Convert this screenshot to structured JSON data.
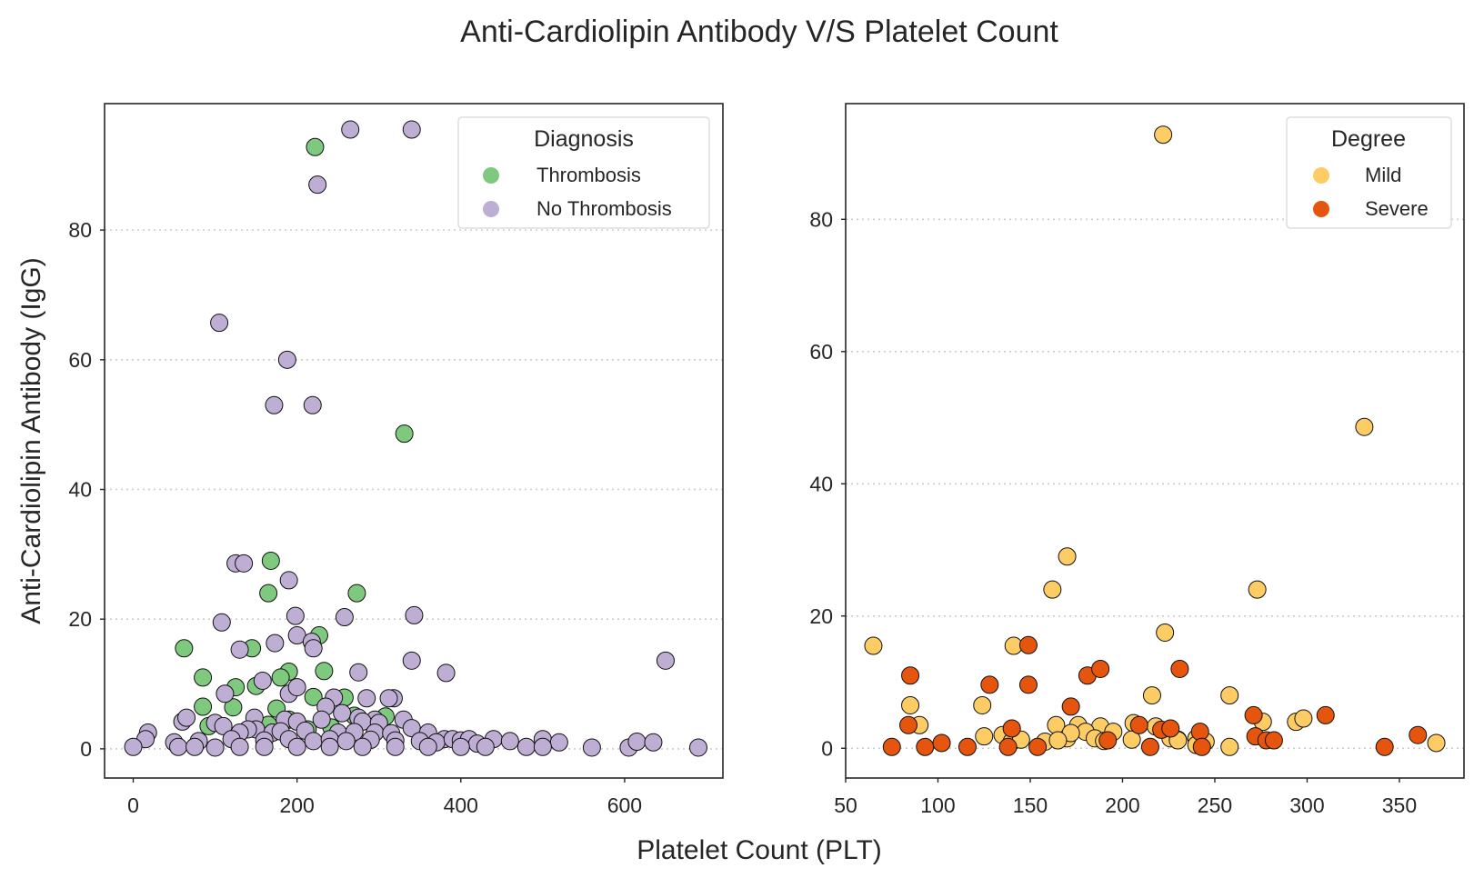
{
  "figure": {
    "title": "Anti-Cardiolipin Antibody V/S Platelet Count",
    "shared_xlabel": "Platelet Count (PLT)"
  },
  "chart_data": [
    {
      "type": "scatter",
      "xlabel": "Platelet Count (PLT)",
      "ylabel": "Anti-Cardiolipin Antibody (IgG)",
      "xlim": [
        -35,
        720
      ],
      "ylim": [
        -4.5,
        99.5
      ],
      "xticks": [
        0,
        200,
        400,
        600
      ],
      "yticks": [
        0,
        20,
        40,
        60,
        80
      ],
      "grid": "horizontal dotted",
      "legend": {
        "title": "Diagnosis",
        "placement": "top-right"
      },
      "series": [
        {
          "name": "Thrombosis",
          "color": "#7fc97f",
          "points": [
            [
              222,
              92.8
            ],
            [
              331,
              48.6
            ],
            [
              168,
              29
            ],
            [
              165,
              24
            ],
            [
              273,
              24
            ],
            [
              62,
              15.5
            ],
            [
              145,
              15.5
            ],
            [
              227,
              17.5
            ],
            [
              190,
              11.9
            ],
            [
              180,
              11
            ],
            [
              233,
              12
            ],
            [
              85,
              11
            ],
            [
              125,
              9.5
            ],
            [
              150,
              9.7
            ],
            [
              220,
              8
            ],
            [
              258,
              7.9
            ],
            [
              308,
              5
            ],
            [
              85,
              6.5
            ],
            [
              122,
              6.4
            ],
            [
              165,
              3.7
            ],
            [
              92,
              3.5
            ],
            [
              242,
              3.3
            ],
            [
              213,
              3
            ],
            [
              358,
              2.2
            ],
            [
              175,
              6.2
            ],
            [
              190,
              4.5
            ],
            [
              270,
              5.1
            ]
          ]
        },
        {
          "name": "No Thrombosis",
          "color": "#beaed4",
          "points": [
            [
              265,
              95.5
            ],
            [
              340,
              95.5
            ],
            [
              225,
              87
            ],
            [
              105,
              65.7
            ],
            [
              188,
              60
            ],
            [
              172,
              53
            ],
            [
              219,
              53
            ],
            [
              125,
              28.6
            ],
            [
              135,
              28.6
            ],
            [
              190,
              26
            ],
            [
              198,
              20.5
            ],
            [
              258,
              20.3
            ],
            [
              343,
              20.6
            ],
            [
              108,
              19.5
            ],
            [
              200,
              17.5
            ],
            [
              218,
              16.5
            ],
            [
              220,
              15.5
            ],
            [
              130,
              15.3
            ],
            [
              173,
              16.3
            ],
            [
              340,
              13.6
            ],
            [
              382,
              11.7
            ],
            [
              275,
              11.8
            ],
            [
              650,
              13.6
            ],
            [
              112,
              8.5
            ],
            [
              190,
              8.5
            ],
            [
              158,
              10.5
            ],
            [
              200,
              9.5
            ],
            [
              245,
              7.9
            ],
            [
              285,
              7.8
            ],
            [
              318,
              7.8
            ],
            [
              312,
              7.8
            ],
            [
              235,
              6.5
            ],
            [
              255,
              5.5
            ],
            [
              275,
              4.8
            ],
            [
              295,
              4.5
            ],
            [
              330,
              4.5
            ],
            [
              100,
              4
            ],
            [
              60,
              4.2
            ],
            [
              65,
              4.8
            ],
            [
              148,
              4.8
            ],
            [
              185,
              4.5
            ],
            [
              200,
              4.2
            ],
            [
              230,
              4.5
            ],
            [
              280,
              4.2
            ],
            [
              300,
              4
            ],
            [
              150,
              3
            ],
            [
              110,
              3.5
            ],
            [
              140,
              3
            ],
            [
              130,
              2.5
            ],
            [
              170,
              2.5
            ],
            [
              180,
              2.7
            ],
            [
              210,
              2.8
            ],
            [
              250,
              2.5
            ],
            [
              270,
              2.6
            ],
            [
              295,
              2.5
            ],
            [
              315,
              2.4
            ],
            [
              340,
              3.2
            ],
            [
              360,
              2.5
            ],
            [
              380,
              1.5
            ],
            [
              18,
              2.5
            ],
            [
              15,
              1.5
            ],
            [
              50,
              1
            ],
            [
              80,
              1.2
            ],
            [
              120,
              1.5
            ],
            [
              160,
              1.3
            ],
            [
              190,
              1.5
            ],
            [
              220,
              1.2
            ],
            [
              240,
              1.5
            ],
            [
              260,
              1.2
            ],
            [
              290,
              1.4
            ],
            [
              320,
              1.3
            ],
            [
              350,
              1.2
            ],
            [
              370,
              1
            ],
            [
              390,
              1.5
            ],
            [
              400,
              1.3
            ],
            [
              410,
              1.5
            ],
            [
              420,
              0.8
            ],
            [
              440,
              1.5
            ],
            [
              460,
              1.2
            ],
            [
              500,
              1.5
            ],
            [
              520,
              1
            ],
            [
              0,
              0.3
            ],
            [
              55,
              0.3
            ],
            [
              75,
              0.3
            ],
            [
              100,
              0.2
            ],
            [
              130,
              0.3
            ],
            [
              160,
              0.3
            ],
            [
              200,
              0.3
            ],
            [
              240,
              0.3
            ],
            [
              280,
              0.3
            ],
            [
              320,
              0.3
            ],
            [
              360,
              0.3
            ],
            [
              400,
              0.3
            ],
            [
              430,
              0.3
            ],
            [
              480,
              0.3
            ],
            [
              500,
              0.3
            ],
            [
              560,
              0.2
            ],
            [
              605,
              0.2
            ],
            [
              615,
              1.1
            ],
            [
              635,
              1
            ],
            [
              690,
              0.2
            ]
          ]
        }
      ]
    },
    {
      "type": "scatter",
      "xlabel": "Platelet Count (PLT)",
      "ylabel": "",
      "xlim": [
        50,
        385
      ],
      "ylim": [
        -4.5,
        97.5
      ],
      "xticks": [
        50,
        100,
        150,
        200,
        250,
        300,
        350
      ],
      "yticks": [
        0,
        20,
        40,
        60,
        80
      ],
      "grid": "horizontal dotted",
      "legend": {
        "title": "Degree",
        "placement": "top-right"
      },
      "series": [
        {
          "name": "Mild",
          "color": "#fdcc65",
          "points": [
            [
              222,
              92.8
            ],
            [
              331,
              48.6
            ],
            [
              170,
              29
            ],
            [
              162,
              24
            ],
            [
              273,
              24
            ],
            [
              65,
              15.5
            ],
            [
              141,
              15.5
            ],
            [
              223,
              17.5
            ],
            [
              85,
              6.5
            ],
            [
              124,
              6.5
            ],
            [
              216,
              8
            ],
            [
              258,
              8
            ],
            [
              90,
              3.5
            ],
            [
              164,
              3.5
            ],
            [
              176,
              3.5
            ],
            [
              188,
              3.3
            ],
            [
              206,
              3.8
            ],
            [
              218,
              3.3
            ],
            [
              240,
              1.5
            ],
            [
              245,
              1
            ],
            [
              125,
              1.8
            ],
            [
              135,
              2
            ],
            [
              140,
              1
            ],
            [
              145,
              1.3
            ],
            [
              158,
              1
            ],
            [
              170,
              1.5
            ],
            [
              180,
              2.5
            ],
            [
              185,
              1.5
            ],
            [
              195,
              2.5
            ],
            [
              205,
              1.3
            ],
            [
              226,
              1.5
            ],
            [
              230,
              1.3
            ],
            [
              258,
              0.2
            ],
            [
              294,
              4
            ],
            [
              298,
              4.5
            ],
            [
              276,
              4
            ],
            [
              370,
              0.8
            ],
            [
              172,
              2.3
            ],
            [
              165,
              1.2
            ],
            [
              190,
              1.1
            ],
            [
              240,
              0.5
            ],
            [
              230,
              1.2
            ]
          ]
        },
        {
          "name": "Severe",
          "color": "#e6550d",
          "points": [
            [
              149,
              15.6
            ],
            [
              85,
              11
            ],
            [
              128,
              9.6
            ],
            [
              149,
              9.6
            ],
            [
              181,
              11
            ],
            [
              188,
              12
            ],
            [
              231,
              12
            ],
            [
              84,
              3.5
            ],
            [
              140,
              3
            ],
            [
              172,
              6.3
            ],
            [
              209,
              3.5
            ],
            [
              221,
              2.8
            ],
            [
              226,
              3
            ],
            [
              242,
              2.5
            ],
            [
              271,
              5
            ],
            [
              310,
              5
            ],
            [
              360,
              2
            ],
            [
              75,
              0.2
            ],
            [
              93,
              0.2
            ],
            [
              102,
              0.8
            ],
            [
              116,
              0.2
            ],
            [
              138,
              0.2
            ],
            [
              154,
              0.2
            ],
            [
              215,
              0.2
            ],
            [
              243,
              0.2
            ],
            [
              272,
              1.8
            ],
            [
              278,
              1.2
            ],
            [
              282,
              1.2
            ],
            [
              342,
              0.2
            ],
            [
              192,
              1.2
            ]
          ]
        }
      ]
    }
  ]
}
